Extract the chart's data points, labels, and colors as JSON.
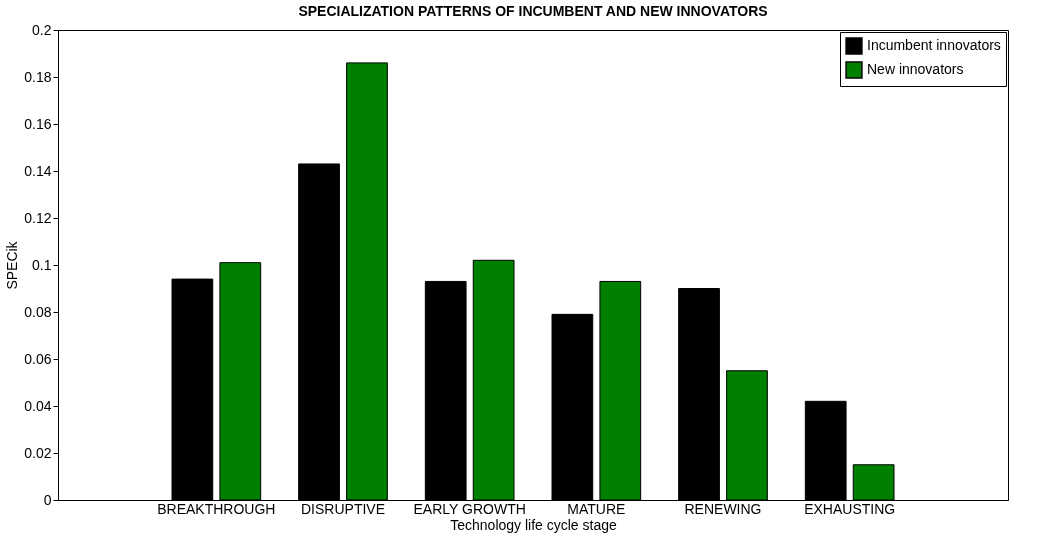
{
  "chart_data": {
    "type": "bar",
    "title": "SPECIALIZATION PATTERNS OF INCUMBENT AND NEW INNOVATORS",
    "xlabel": "Technology life cycle stage",
    "ylabel": "SPECik",
    "categories": [
      "BREAKTHROUGH",
      "DISRUPTIVE",
      "EARLY GROWTH",
      "MATURE",
      "RENEWING",
      "EXHAUSTING"
    ],
    "series": [
      {
        "name": "Incumbent innovators",
        "color": "#000000",
        "values": [
          0.094,
          0.143,
          0.093,
          0.079,
          0.09,
          0.042
        ]
      },
      {
        "name": "New innovators",
        "color": "#008000",
        "values": [
          0.101,
          0.186,
          0.102,
          0.093,
          0.055,
          0.015
        ]
      }
    ],
    "ylim": [
      0,
      0.2
    ],
    "yticks": [
      0,
      0.02,
      0.04,
      0.06,
      0.08,
      0.1,
      0.12,
      0.14,
      0.16,
      0.18,
      0.2
    ],
    "legend": "top right",
    "grid": false
  }
}
